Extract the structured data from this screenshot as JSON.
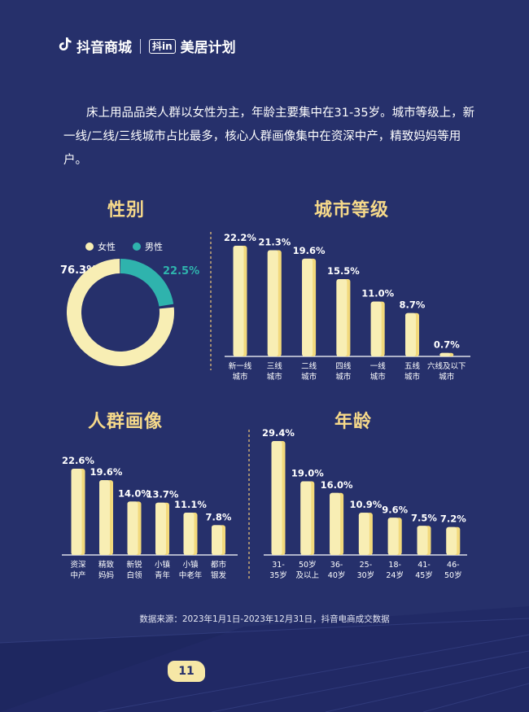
{
  "brand": {
    "name": "抖音商城",
    "badge": "抖in",
    "plan": "美居计划"
  },
  "intro": "床上用品品类人群以女性为主，年龄主要集中在31-35岁。城市等级上，新一线/二线/三线城市占比最多，核心人群画像集中在资深中产，精致妈妈等用户。",
  "chart_data": [
    {
      "type": "pie",
      "title": "性别",
      "legend": [
        "女性",
        "男性"
      ],
      "values": [
        76.3,
        22.5
      ],
      "labels": [
        "76.3%",
        "22.5%"
      ],
      "colors": [
        "#f8eeb4",
        "#2fb3ad"
      ],
      "legend_placement": "top"
    },
    {
      "type": "bar",
      "title": "城市等级",
      "categories": [
        "新一线城市",
        "三线城市",
        "二线城市",
        "四线城市",
        "一线城市",
        "五线城市",
        "六线及以下城市"
      ],
      "category_lines": [
        [
          "新一线",
          "城市"
        ],
        [
          "三线",
          "城市"
        ],
        [
          "二线",
          "城市"
        ],
        [
          "四线",
          "城市"
        ],
        [
          "一线",
          "城市"
        ],
        [
          "五线",
          "城市"
        ],
        [
          "六线及以下",
          "城市"
        ]
      ],
      "values": [
        22.2,
        21.3,
        19.6,
        15.5,
        11.0,
        8.7,
        0.7
      ],
      "labels": [
        "22.2%",
        "21.3%",
        "19.6%",
        "15.5%",
        "11.0%",
        "8.7%",
        "0.7%"
      ]
    },
    {
      "type": "bar",
      "title": "人群画像",
      "categories": [
        "资深中产",
        "精致妈妈",
        "新锐白领",
        "小镇青年",
        "小镇中老年",
        "都市银发"
      ],
      "category_lines": [
        [
          "资深",
          "中产"
        ],
        [
          "精致",
          "妈妈"
        ],
        [
          "新锐",
          "白领"
        ],
        [
          "小镇",
          "青年"
        ],
        [
          "小镇",
          "中老年"
        ],
        [
          "都市",
          "银发"
        ]
      ],
      "values": [
        22.6,
        19.6,
        14.0,
        13.7,
        11.1,
        7.8
      ],
      "labels": [
        "22.6%",
        "19.6%",
        "14.0%",
        "13.7%",
        "11.1%",
        "7.8%"
      ]
    },
    {
      "type": "bar",
      "title": "年龄",
      "categories": [
        "31-35岁",
        "50岁及以上",
        "36-40岁",
        "25-30岁",
        "18-24岁",
        "41-45岁",
        "46-50岁"
      ],
      "category_lines": [
        [
          "31-",
          "35岁"
        ],
        [
          "50岁",
          "及以上"
        ],
        [
          "36-",
          "40岁"
        ],
        [
          "25-",
          "30岁"
        ],
        [
          "18-",
          "24岁"
        ],
        [
          "41-",
          "45岁"
        ],
        [
          "46-",
          "50岁"
        ]
      ],
      "values": [
        29.4,
        19.0,
        16.0,
        10.9,
        9.6,
        7.5,
        7.2
      ],
      "labels": [
        "29.4%",
        "19.0%",
        "16.0%",
        "10.9%",
        "9.6%",
        "7.5%",
        "7.2%"
      ]
    }
  ],
  "source": "数据来源：2023年1月1日-2023年12月31日，抖音电商成交数据",
  "page_number": "11",
  "colors": {
    "background": "#26306b",
    "bar_fill": "#f8eeb4",
    "bar_side": "#f2d97c",
    "title": "#f6d98a",
    "male": "#2fb3ad"
  }
}
